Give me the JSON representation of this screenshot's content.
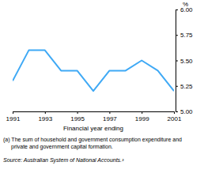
{
  "chart_data": {
    "type": "line",
    "x_label": "Financial year ending",
    "y_label": "%",
    "x": [
      1991,
      1992,
      1993,
      1994,
      1995,
      1996,
      1997,
      1998,
      1999,
      2000,
      2001
    ],
    "values": [
      5.3,
      5.6,
      5.6,
      5.4,
      5.4,
      5.2,
      5.4,
      5.4,
      5.5,
      5.4,
      5.2
    ],
    "color": "#3fa9f5",
    "xlim": [
      1991,
      2001
    ],
    "xticks": [
      1991,
      1993,
      1995,
      1997,
      1999,
      2001
    ],
    "ylim": [
      5,
      6
    ],
    "yticks": [
      {
        "value": 5,
        "label": "5.00"
      },
      {
        "value": 5.25,
        "label": "5.25"
      },
      {
        "value": 5.5,
        "label": "5.50"
      },
      {
        "value": 5.75,
        "label": "5.75"
      },
      {
        "value": 6,
        "label": "6.00"
      }
    ],
    "grid": false,
    "footnote": "(a) The sum of household and government consumption expenditure and private and government capital formation.",
    "source": "Source: Australian System of National Accounts.³"
  }
}
